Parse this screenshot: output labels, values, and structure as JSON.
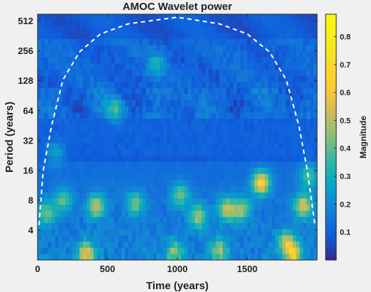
{
  "chart_data": {
    "type": "heatmap",
    "title": "AMOC Wavelet power",
    "xlabel": "Time (years)",
    "ylabel": "Period (years)",
    "colorbar_label": "Magnitude",
    "xlim": [
      0,
      2000
    ],
    "ylim": [
      2,
      600
    ],
    "yscale": "log2",
    "x_ticks": [
      0,
      500,
      1000,
      1500
    ],
    "y_ticks": [
      4,
      8,
      16,
      32,
      64,
      128,
      256,
      512
    ],
    "colorbar_range": [
      0,
      0.88
    ],
    "colorbar_ticks": [
      0.1,
      0.2,
      0.3,
      0.4,
      0.5,
      0.6,
      0.7,
      0.8
    ],
    "colormap": "parula",
    "grid": false,
    "cone_of_influence": {
      "style": "white dashed",
      "points": [
        [
          10,
          4.5
        ],
        [
          40,
          16
        ],
        [
          100,
          45
        ],
        [
          180,
          130
        ],
        [
          300,
          250
        ],
        [
          450,
          380
        ],
        [
          650,
          480
        ],
        [
          1000,
          560
        ],
        [
          1300,
          480
        ],
        [
          1500,
          380
        ],
        [
          1660,
          250
        ],
        [
          1780,
          130
        ],
        [
          1870,
          45
        ],
        [
          1930,
          16
        ],
        [
          1985,
          4.5
        ]
      ]
    },
    "features": [
      {
        "x": 850,
        "period": 190,
        "magnitude": 0.33
      },
      {
        "x": 560,
        "period": 64,
        "magnitude": 0.38
      },
      {
        "x": 1600,
        "period": 12,
        "magnitude": 0.74
      },
      {
        "x": 1900,
        "period": 7,
        "magnitude": 0.6
      },
      {
        "x": 420,
        "period": 7,
        "magnitude": 0.55
      },
      {
        "x": 1350,
        "period": 6.5,
        "magnitude": 0.55
      },
      {
        "x": 1460,
        "period": 6.5,
        "magnitude": 0.5
      },
      {
        "x": 1150,
        "period": 5.5,
        "magnitude": 0.5
      },
      {
        "x": 700,
        "period": 7.5,
        "magnitude": 0.45
      },
      {
        "x": 1020,
        "period": 9,
        "magnitude": 0.45
      },
      {
        "x": 180,
        "period": 8,
        "magnitude": 0.42
      },
      {
        "x": 60,
        "period": 6,
        "magnitude": 0.45
      },
      {
        "x": 350,
        "period": 2.3,
        "magnitude": 0.62
      },
      {
        "x": 1830,
        "period": 2.3,
        "magnitude": 0.6
      },
      {
        "x": 1780,
        "period": 3,
        "magnitude": 0.5
      },
      {
        "x": 980,
        "period": 2.4,
        "magnitude": 0.45
      },
      {
        "x": 1300,
        "period": 2.5,
        "magnitude": 0.45
      },
      {
        "x": 1940,
        "period": 14,
        "magnitude": 0.42
      },
      {
        "x": 130,
        "period": 24,
        "magnitude": 0.3
      }
    ]
  }
}
